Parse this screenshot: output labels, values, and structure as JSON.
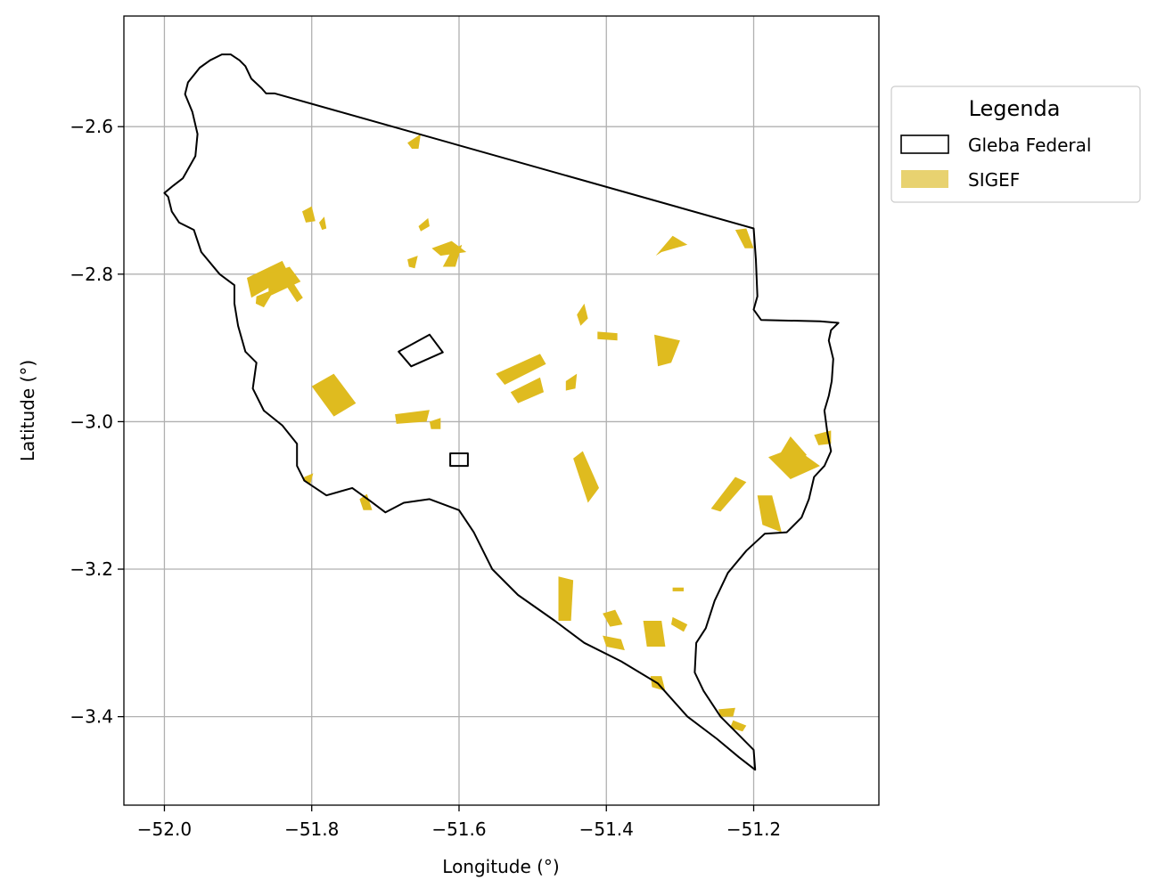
{
  "chart_data": {
    "type": "map",
    "xlabel": "Longitude (°)",
    "ylabel": "Latitude (°)",
    "xlim": [
      -52.055,
      -51.03
    ],
    "ylim": [
      -3.52,
      -2.45
    ],
    "xticks": [
      -52.0,
      -51.8,
      -51.6,
      -51.4,
      -51.2
    ],
    "xtick_labels": [
      "−52.0",
      "−51.8",
      "−51.6",
      "−51.4",
      "−51.2"
    ],
    "yticks": [
      -2.6,
      -2.8,
      -3.0,
      -3.2,
      -3.4
    ],
    "ytick_labels": [
      "−2.6",
      "−2.8",
      "−3.0",
      "−3.2",
      "−3.4"
    ],
    "grid": true,
    "legend": {
      "title": "Legenda",
      "placement": "outside-upper-right",
      "entries": [
        {
          "label": "Gleba Federal",
          "style": "outline",
          "color": "#000000"
        },
        {
          "label": "SIGEF",
          "style": "fill",
          "color": "#e8d270"
        }
      ]
    },
    "colors": {
      "gleba_outline": "#000000",
      "sigef_fill": "#dfbb1f",
      "grid": "#b0b0b0"
    },
    "gleba_federal": [
      {
        "name": "main-boundary",
        "coords": [
          [
            -51.922,
            -2.502
          ],
          [
            -51.91,
            -2.502
          ],
          [
            -51.898,
            -2.51
          ],
          [
            -51.89,
            -2.518
          ],
          [
            -51.882,
            -2.535
          ],
          [
            -51.868,
            -2.548
          ],
          [
            -51.862,
            -2.555
          ],
          [
            -51.85,
            -2.555
          ],
          [
            -51.2,
            -2.738
          ],
          [
            -51.197,
            -2.78
          ],
          [
            -51.195,
            -2.83
          ],
          [
            -51.2,
            -2.848
          ],
          [
            -51.19,
            -2.862
          ],
          [
            -51.11,
            -2.864
          ],
          [
            -51.085,
            -2.866
          ],
          [
            -51.095,
            -2.876
          ],
          [
            -51.098,
            -2.89
          ],
          [
            -51.092,
            -2.915
          ],
          [
            -51.094,
            -2.945
          ],
          [
            -51.098,
            -2.965
          ],
          [
            -51.104,
            -2.985
          ],
          [
            -51.1,
            -3.015
          ],
          [
            -51.095,
            -3.04
          ],
          [
            -51.104,
            -3.06
          ],
          [
            -51.118,
            -3.075
          ],
          [
            -51.125,
            -3.105
          ],
          [
            -51.135,
            -3.13
          ],
          [
            -51.155,
            -3.15
          ],
          [
            -51.185,
            -3.152
          ],
          [
            -51.21,
            -3.175
          ],
          [
            -51.235,
            -3.205
          ],
          [
            -51.253,
            -3.243
          ],
          [
            -51.265,
            -3.28
          ],
          [
            -51.278,
            -3.3
          ],
          [
            -51.28,
            -3.34
          ],
          [
            -51.268,
            -3.365
          ],
          [
            -51.245,
            -3.4
          ],
          [
            -51.22,
            -3.425
          ],
          [
            -51.2,
            -3.445
          ],
          [
            -51.198,
            -3.472
          ],
          [
            -51.22,
            -3.455
          ],
          [
            -51.25,
            -3.43
          ],
          [
            -51.29,
            -3.4
          ],
          [
            -51.33,
            -3.355
          ],
          [
            -51.38,
            -3.325
          ],
          [
            -51.43,
            -3.3
          ],
          [
            -51.47,
            -3.27
          ],
          [
            -51.52,
            -3.235
          ],
          [
            -51.555,
            -3.2
          ],
          [
            -51.58,
            -3.15
          ],
          [
            -51.6,
            -3.12
          ],
          [
            -51.64,
            -3.105
          ],
          [
            -51.675,
            -3.11
          ],
          [
            -51.7,
            -3.123
          ],
          [
            -51.72,
            -3.108
          ],
          [
            -51.745,
            -3.09
          ],
          [
            -51.78,
            -3.1
          ],
          [
            -51.81,
            -3.08
          ],
          [
            -51.82,
            -3.06
          ],
          [
            -51.82,
            -3.03
          ],
          [
            -51.84,
            -3.005
          ],
          [
            -51.865,
            -2.985
          ],
          [
            -51.88,
            -2.955
          ],
          [
            -51.875,
            -2.92
          ],
          [
            -51.89,
            -2.905
          ],
          [
            -51.9,
            -2.87
          ],
          [
            -51.905,
            -2.84
          ],
          [
            -51.905,
            -2.815
          ],
          [
            -51.925,
            -2.8
          ],
          [
            -51.95,
            -2.77
          ],
          [
            -51.96,
            -2.74
          ],
          [
            -51.98,
            -2.73
          ],
          [
            -51.99,
            -2.715
          ],
          [
            -51.995,
            -2.695
          ],
          [
            -52.0,
            -2.69
          ],
          [
            -51.988,
            -2.68
          ],
          [
            -51.975,
            -2.67
          ],
          [
            -51.958,
            -2.64
          ],
          [
            -51.955,
            -2.61
          ],
          [
            -51.962,
            -2.58
          ],
          [
            -51.972,
            -2.556
          ],
          [
            -51.968,
            -2.54
          ],
          [
            -51.952,
            -2.52
          ],
          [
            -51.938,
            -2.51
          ]
        ]
      },
      {
        "name": "small-parcel-north",
        "coords": [
          [
            -51.682,
            -2.905
          ],
          [
            -51.64,
            -2.882
          ],
          [
            -51.622,
            -2.906
          ],
          [
            -51.665,
            -2.925
          ]
        ]
      },
      {
        "name": "small-parcel-south",
        "coords": [
          [
            -51.612,
            -3.043
          ],
          [
            -51.588,
            -3.043
          ],
          [
            -51.588,
            -3.06
          ],
          [
            -51.612,
            -3.06
          ]
        ]
      }
    ],
    "sigef": [
      [
        [
          -51.888,
          -2.805
        ],
        [
          -51.84,
          -2.782
        ],
        [
          -51.83,
          -2.802
        ],
        [
          -51.882,
          -2.832
        ]
      ],
      [
        [
          -51.86,
          -2.8
        ],
        [
          -51.83,
          -2.79
        ],
        [
          -51.815,
          -2.81
        ],
        [
          -51.858,
          -2.83
        ]
      ],
      [
        [
          -51.875,
          -2.83
        ],
        [
          -51.85,
          -2.82
        ],
        [
          -51.865,
          -2.845
        ],
        [
          -51.876,
          -2.84
        ]
      ],
      [
        [
          -51.833,
          -2.818
        ],
        [
          -51.825,
          -2.812
        ],
        [
          -51.812,
          -2.832
        ],
        [
          -51.82,
          -2.838
        ]
      ],
      [
        [
          -51.8,
          -2.952
        ],
        [
          -51.77,
          -2.935
        ],
        [
          -51.74,
          -2.975
        ],
        [
          -51.77,
          -2.993
        ]
      ],
      [
        [
          -51.687,
          -2.99
        ],
        [
          -51.64,
          -2.984
        ],
        [
          -51.644,
          -3.0
        ],
        [
          -51.685,
          -3.003
        ]
      ],
      [
        [
          -51.64,
          -3.0
        ],
        [
          -51.625,
          -2.995
        ],
        [
          -51.625,
          -3.01
        ],
        [
          -51.638,
          -3.01
        ]
      ],
      [
        [
          -51.55,
          -2.935
        ],
        [
          -51.49,
          -2.908
        ],
        [
          -51.482,
          -2.922
        ],
        [
          -51.538,
          -2.95
        ]
      ],
      [
        [
          -51.53,
          -2.96
        ],
        [
          -51.49,
          -2.94
        ],
        [
          -51.485,
          -2.96
        ],
        [
          -51.52,
          -2.975
        ]
      ],
      [
        [
          -51.455,
          -2.945
        ],
        [
          -51.44,
          -2.935
        ],
        [
          -51.442,
          -2.955
        ],
        [
          -51.455,
          -2.958
        ]
      ],
      [
        [
          -51.44,
          -2.855
        ],
        [
          -51.43,
          -2.84
        ],
        [
          -51.425,
          -2.86
        ],
        [
          -51.435,
          -2.87
        ]
      ],
      [
        [
          -51.412,
          -2.878
        ],
        [
          -51.385,
          -2.88
        ],
        [
          -51.385,
          -2.89
        ],
        [
          -51.412,
          -2.888
        ]
      ],
      [
        [
          -51.335,
          -2.882
        ],
        [
          -51.3,
          -2.89
        ],
        [
          -51.312,
          -2.92
        ],
        [
          -51.33,
          -2.925
        ]
      ],
      [
        [
          -51.165,
          -3.045
        ],
        [
          -51.15,
          -3.02
        ],
        [
          -51.128,
          -3.045
        ],
        [
          -51.142,
          -3.058
        ]
      ],
      [
        [
          -51.18,
          -3.048
        ],
        [
          -51.145,
          -3.035
        ],
        [
          -51.11,
          -3.06
        ],
        [
          -51.15,
          -3.078
        ]
      ],
      [
        [
          -51.118,
          -3.018
        ],
        [
          -51.095,
          -3.012
        ],
        [
          -51.095,
          -3.03
        ],
        [
          -51.112,
          -3.032
        ]
      ],
      [
        [
          -51.225,
          -3.075
        ],
        [
          -51.21,
          -3.082
        ],
        [
          -51.245,
          -3.122
        ],
        [
          -51.258,
          -3.118
        ]
      ],
      [
        [
          -51.195,
          -3.1
        ],
        [
          -51.175,
          -3.1
        ],
        [
          -51.162,
          -3.15
        ],
        [
          -51.188,
          -3.14
        ]
      ],
      [
        [
          -51.225,
          -2.74
        ],
        [
          -51.21,
          -2.738
        ],
        [
          -51.2,
          -2.765
        ],
        [
          -51.212,
          -2.765
        ]
      ],
      [
        [
          -51.333,
          -2.775
        ],
        [
          -51.31,
          -2.748
        ],
        [
          -51.29,
          -2.76
        ],
        [
          -51.325,
          -2.77
        ]
      ],
      [
        [
          -51.637,
          -2.765
        ],
        [
          -51.61,
          -2.755
        ],
        [
          -51.59,
          -2.77
        ],
        [
          -51.625,
          -2.775
        ]
      ],
      [
        [
          -51.61,
          -2.768
        ],
        [
          -51.596,
          -2.76
        ],
        [
          -51.605,
          -2.79
        ],
        [
          -51.622,
          -2.79
        ]
      ],
      [
        [
          -51.655,
          -2.735
        ],
        [
          -51.642,
          -2.724
        ],
        [
          -51.64,
          -2.735
        ],
        [
          -51.652,
          -2.742
        ]
      ],
      [
        [
          -51.67,
          -2.78
        ],
        [
          -51.656,
          -2.775
        ],
        [
          -51.66,
          -2.792
        ],
        [
          -51.668,
          -2.79
        ]
      ],
      [
        [
          -51.67,
          -2.622
        ],
        [
          -51.652,
          -2.61
        ],
        [
          -51.655,
          -2.63
        ],
        [
          -51.664,
          -2.63
        ]
      ],
      [
        [
          -51.813,
          -2.715
        ],
        [
          -51.8,
          -2.708
        ],
        [
          -51.795,
          -2.728
        ],
        [
          -51.808,
          -2.73
        ]
      ],
      [
        [
          -51.79,
          -2.73
        ],
        [
          -51.783,
          -2.722
        ],
        [
          -51.78,
          -2.738
        ],
        [
          -51.786,
          -2.74
        ]
      ],
      [
        [
          -51.445,
          -3.05
        ],
        [
          -51.432,
          -3.04
        ],
        [
          -51.41,
          -3.09
        ],
        [
          -51.425,
          -3.11
        ]
      ],
      [
        [
          -51.465,
          -3.21
        ],
        [
          -51.445,
          -3.215
        ],
        [
          -51.448,
          -3.27
        ],
        [
          -51.465,
          -3.27
        ]
      ],
      [
        [
          -51.405,
          -3.26
        ],
        [
          -51.388,
          -3.255
        ],
        [
          -51.378,
          -3.275
        ],
        [
          -51.395,
          -3.278
        ]
      ],
      [
        [
          -51.405,
          -3.29
        ],
        [
          -51.38,
          -3.295
        ],
        [
          -51.375,
          -3.31
        ],
        [
          -51.4,
          -3.305
        ]
      ],
      [
        [
          -51.35,
          -3.27
        ],
        [
          -51.325,
          -3.27
        ],
        [
          -51.32,
          -3.305
        ],
        [
          -51.345,
          -3.305
        ]
      ],
      [
        [
          -51.31,
          -3.265
        ],
        [
          -51.29,
          -3.275
        ],
        [
          -51.295,
          -3.285
        ],
        [
          -51.312,
          -3.275
        ]
      ],
      [
        [
          -51.34,
          -3.345
        ],
        [
          -51.325,
          -3.345
        ],
        [
          -51.32,
          -3.365
        ],
        [
          -51.338,
          -3.36
        ]
      ],
      [
        [
          -51.248,
          -3.39
        ],
        [
          -51.225,
          -3.388
        ],
        [
          -51.228,
          -3.4
        ],
        [
          -51.245,
          -3.4
        ]
      ],
      [
        [
          -51.228,
          -3.405
        ],
        [
          -51.21,
          -3.412
        ],
        [
          -51.215,
          -3.42
        ],
        [
          -51.232,
          -3.415
        ]
      ],
      [
        [
          -51.735,
          -3.105
        ],
        [
          -51.725,
          -3.098
        ],
        [
          -51.718,
          -3.12
        ],
        [
          -51.73,
          -3.12
        ]
      ],
      [
        [
          -51.81,
          -3.075
        ],
        [
          -51.798,
          -3.07
        ],
        [
          -51.802,
          -3.085
        ],
        [
          -51.812,
          -3.08
        ]
      ],
      [
        [
          -51.295,
          -3.225
        ],
        [
          -51.31,
          -3.225
        ],
        [
          -51.31,
          -3.23
        ],
        [
          -51.295,
          -3.23
        ]
      ]
    ]
  }
}
